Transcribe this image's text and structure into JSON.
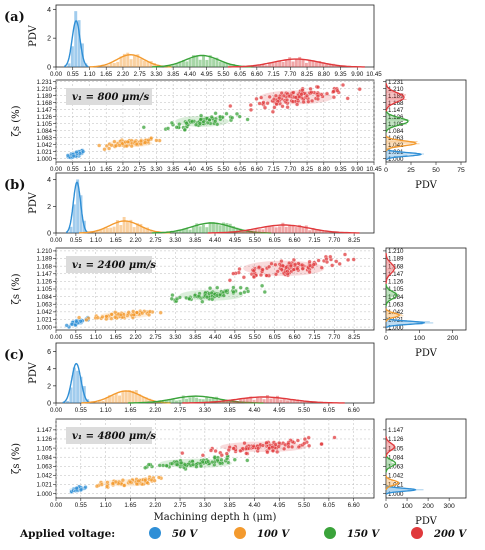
{
  "legend": {
    "title": "Applied voltage:",
    "items": [
      {
        "label": "50 V",
        "color": "#2f8fd6"
      },
      {
        "label": "100 V",
        "color": "#f39a2e"
      },
      {
        "label": "150 V",
        "color": "#3aa33a"
      },
      {
        "label": "200 V",
        "color": "#e0393c"
      }
    ]
  },
  "chart_data": [
    {
      "type": "scatter",
      "panel_label": "(a)",
      "speed_label": "v₁ = 800 μm/s",
      "xlabel": "",
      "ylabel": "ζs (%)",
      "top_ylabel": "PDV",
      "side_xlabel": "PDV",
      "xlim": [
        0,
        10.45
      ],
      "xticks": [
        "0.00",
        "0.55",
        "1.10",
        "1.65",
        "2.20",
        "2.75",
        "3.30",
        "3.85",
        "4.40",
        "4.95",
        "5.50",
        "6.05",
        "6.60",
        "7.15",
        "7.70",
        "8.25",
        "8.80",
        "9.35",
        "9.90",
        "10.45"
      ],
      "top_ylim": [
        0,
        4.3
      ],
      "top_yticks": [
        "0",
        "2",
        "4"
      ],
      "ylim": [
        0.99,
        1.236
      ],
      "yticks": [
        "1.000",
        "1.021",
        "1.042",
        "1.063",
        "1.084",
        "1.105",
        "1.126",
        "1.147",
        "1.168",
        "1.189",
        "1.210",
        "1.231"
      ],
      "side_xlim": [
        0,
        80
      ],
      "side_xticks": [
        "0",
        "25",
        "50",
        "75"
      ],
      "series": [
        {
          "name": "50 V",
          "x_mean": 0.66,
          "x_sd": 0.13,
          "y_mean": 1.013,
          "y_sd": 0.0055,
          "n": 45,
          "pdv_peak": 3.2,
          "side_peak": 35
        },
        {
          "name": "100 V",
          "x_mean": 2.45,
          "x_sd": 0.45,
          "y_mean": 1.046,
          "y_sd": 0.0075,
          "n": 70,
          "pdv_peak": 0.85,
          "side_peak": 30
        },
        {
          "name": "150 V",
          "x_mean": 4.8,
          "x_sd": 0.55,
          "y_mean": 1.112,
          "y_sd": 0.011,
          "n": 80,
          "pdv_peak": 0.8,
          "side_peak": 22
        },
        {
          "name": "200 V",
          "x_mean": 7.9,
          "x_sd": 0.75,
          "y_mean": 1.184,
          "y_sd": 0.014,
          "n": 110,
          "pdv_peak": 0.55,
          "side_peak": 18
        }
      ]
    },
    {
      "type": "scatter",
      "panel_label": "(b)",
      "speed_label": "v₁ = 2400 μm/s",
      "xlabel": "",
      "ylabel": "ζs (%)",
      "top_ylabel": "PDV",
      "side_xlabel": "PDV",
      "xlim": [
        0,
        8.8
      ],
      "xticks": [
        "0.00",
        "0.55",
        "1.10",
        "1.65",
        "2.20",
        "2.75",
        "3.30",
        "3.85",
        "4.40",
        "4.95",
        "5.50",
        "6.05",
        "6.60",
        "7.15",
        "7.70",
        "8.25"
      ],
      "top_ylim": [
        0,
        4.5
      ],
      "top_yticks": [
        "0",
        "2",
        "4"
      ],
      "ylim": [
        0.992,
        1.218
      ],
      "yticks": [
        "1.000",
        "1.021",
        "1.042",
        "1.063",
        "1.084",
        "1.105",
        "1.126",
        "1.147",
        "1.168",
        "1.189",
        "1.210"
      ],
      "side_xlim": [
        0,
        240
      ],
      "side_xticks": [
        "0",
        "100",
        "200"
      ],
      "series": [
        {
          "name": "50 V",
          "x_mean": 0.58,
          "x_sd": 0.1,
          "y_mean": 1.012,
          "y_sd": 0.0045,
          "n": 40,
          "pdv_peak": 3.8,
          "side_peak": 115
        },
        {
          "name": "100 V",
          "x_mean": 1.9,
          "x_sd": 0.42,
          "y_mean": 1.033,
          "y_sd": 0.006,
          "n": 70,
          "pdv_peak": 0.9,
          "side_peak": 40
        },
        {
          "name": "150 V",
          "x_mean": 4.3,
          "x_sd": 0.55,
          "y_mean": 1.088,
          "y_sd": 0.01,
          "n": 80,
          "pdv_peak": 0.75,
          "side_peak": 32
        },
        {
          "name": "200 V",
          "x_mean": 6.3,
          "x_sd": 0.7,
          "y_mean": 1.162,
          "y_sd": 0.014,
          "n": 110,
          "pdv_peak": 0.6,
          "side_peak": 25
        }
      ]
    },
    {
      "type": "scatter",
      "panel_label": "(c)",
      "speed_label": "v₁ = 4800 μm/s",
      "xlabel": "Machining depth h (μm)",
      "ylabel": "ζs (%)",
      "top_ylabel": "PDV",
      "side_xlabel": "PDV",
      "xlim": [
        0,
        7.05
      ],
      "xticks": [
        "0.00",
        "0.55",
        "1.10",
        "1.65",
        "2.20",
        "2.75",
        "3.30",
        "3.85",
        "4.40",
        "4.95",
        "5.50",
        "6.05",
        "6.60"
      ],
      "top_ylim": [
        0,
        7
      ],
      "top_yticks": [
        "0",
        "2",
        "4",
        "6"
      ],
      "ylim": [
        0.99,
        1.172
      ],
      "yticks": [
        "1.000",
        "1.021",
        "1.042",
        "1.063",
        "1.084",
        "1.105",
        "1.126",
        "1.147"
      ],
      "side_xlim": [
        0,
        380
      ],
      "side_xticks": [
        "0",
        "100",
        "200",
        "300"
      ],
      "series": [
        {
          "name": "50 V",
          "x_mean": 0.45,
          "x_sd": 0.1,
          "y_mean": 1.009,
          "y_sd": 0.0035,
          "n": 35,
          "pdv_peak": 4.6,
          "side_peak": 140
        },
        {
          "name": "100 V",
          "x_mean": 1.55,
          "x_sd": 0.33,
          "y_mean": 1.025,
          "y_sd": 0.0055,
          "n": 60,
          "pdv_peak": 1.4,
          "side_peak": 60
        },
        {
          "name": "150 V",
          "x_mean": 3.1,
          "x_sd": 0.5,
          "y_mean": 1.07,
          "y_sd": 0.007,
          "n": 80,
          "pdv_peak": 0.8,
          "side_peak": 45
        },
        {
          "name": "200 V",
          "x_mean": 4.6,
          "x_sd": 0.6,
          "y_mean": 1.108,
          "y_sd": 0.008,
          "n": 100,
          "pdv_peak": 0.7,
          "side_peak": 40
        }
      ]
    }
  ]
}
